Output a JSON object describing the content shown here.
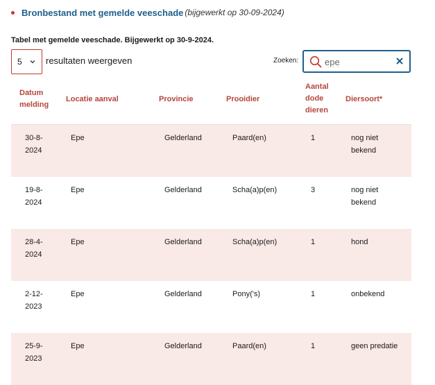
{
  "header": {
    "link_text": "Bronbestand met gemelde veeschade",
    "updated_note": "(bijgewerkt op 30-09-2024)"
  },
  "table_caption": "Tabel met gemelde veeschade. Bijgewerkt op 30-9-2024.",
  "length_control": {
    "selected": "5",
    "label": "resultaten weergeven"
  },
  "search": {
    "label": "Zoeken:",
    "value": "epe"
  },
  "columns": {
    "date": "Datum melding",
    "location": "Locatie aanval",
    "province": "Provincie",
    "prey": "Prooidier",
    "count": "Aantal dode dieren",
    "species": "Diersoort*"
  },
  "rows": [
    {
      "date": "30-8-2024",
      "location": "Epe",
      "province": "Gelderland",
      "prey": "Paard(en)",
      "count": "1",
      "species": "nog niet bekend"
    },
    {
      "date": "19-8-2024",
      "location": "Epe",
      "province": "Gelderland",
      "prey": "Scha(a)p(en)",
      "count": "3",
      "species": "nog niet bekend"
    },
    {
      "date": "28-4-2024",
      "location": "Epe",
      "province": "Gelderland",
      "prey": "Scha(a)p(en)",
      "count": "1",
      "species": "hond"
    },
    {
      "date": "2-12-2023",
      "location": "Epe",
      "province": "Gelderland",
      "prey": "Pony('s)",
      "count": "1",
      "species": "onbekend"
    },
    {
      "date": "25-9-2023",
      "location": "Epe",
      "province": "Gelderland",
      "prey": "Paard(en)",
      "count": "1",
      "species": "geen predatie"
    }
  ],
  "icons": {
    "bullet": "bullet-dot-icon",
    "select_chevron": "chevron-down-icon",
    "search": "search-icon",
    "clear": "close-icon"
  },
  "colors": {
    "link": "#1f5f8b",
    "accent": "#c0392b",
    "header_text": "#b5453a",
    "row_highlight": "#f9e9e7"
  }
}
